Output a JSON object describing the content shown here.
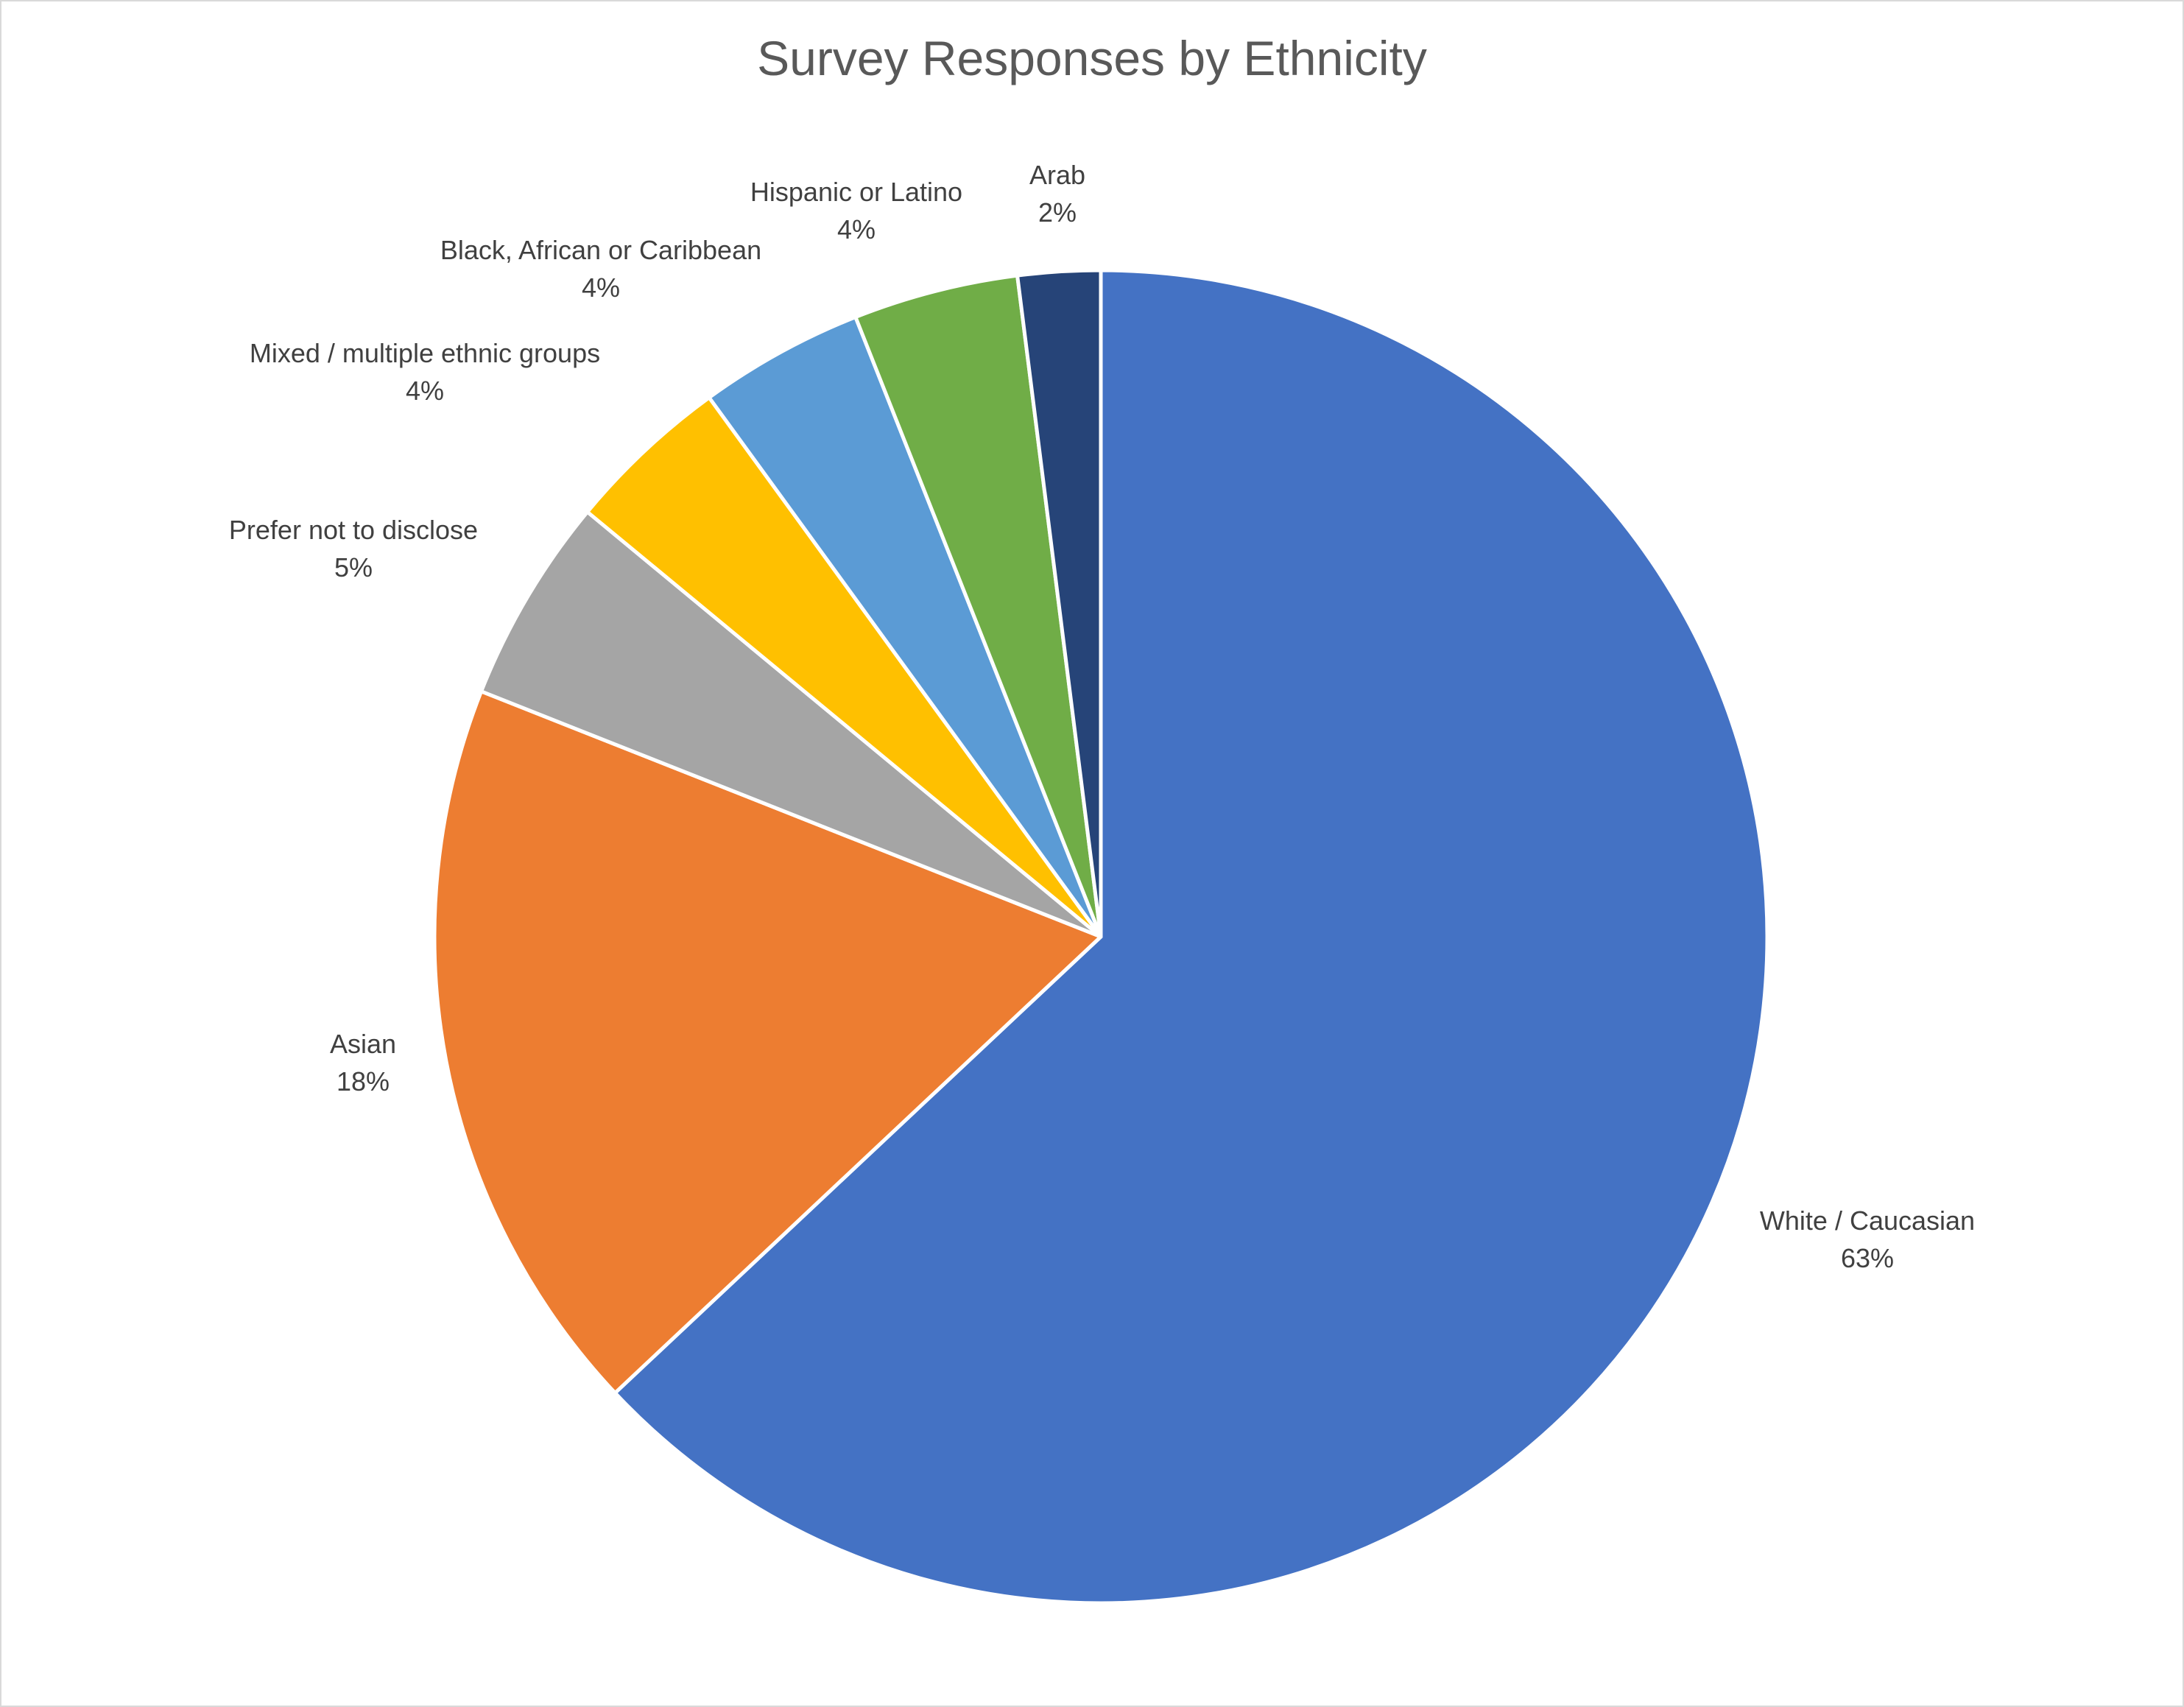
{
  "chart_data": {
    "type": "pie",
    "title": "Survey Responses by Ethnicity",
    "categories": [
      "White / Caucasian",
      "Asian",
      "Prefer not to disclose",
      "Mixed / multiple ethnic groups",
      "Black, African or Caribbean",
      "Hispanic or Latino",
      "Arab"
    ],
    "values": [
      63,
      18,
      5,
      4,
      4,
      4,
      2
    ],
    "value_labels": [
      "63%",
      "18%",
      "5%",
      "4%",
      "4%",
      "4%",
      "2%"
    ],
    "colors": [
      "#4472C4",
      "#ED7D31",
      "#A5A5A5",
      "#FFC000",
      "#5B9BD5",
      "#70AD47",
      "#264478"
    ],
    "start_angle_deg": 0,
    "direction": "clockwise",
    "legend": "none",
    "data_labels": "outside"
  }
}
